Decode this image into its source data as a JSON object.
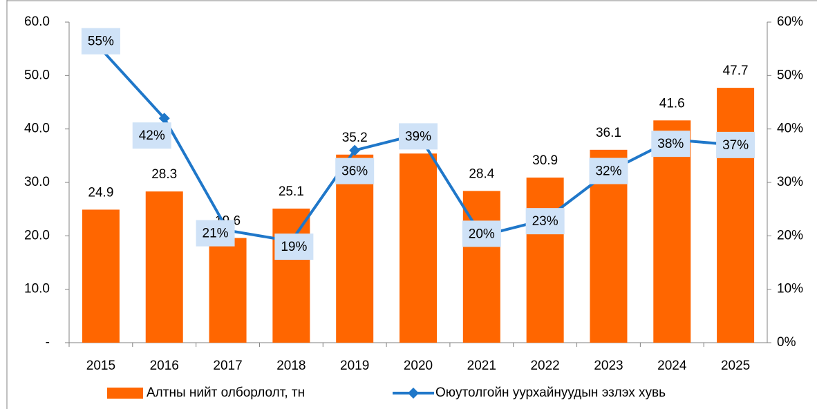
{
  "chart_data": {
    "type": "bar_line",
    "categories": [
      "2015",
      "2016",
      "2017",
      "2018",
      "2019",
      "2020",
      "2021",
      "2022",
      "2023",
      "2024",
      "2025"
    ],
    "series": [
      {
        "name": "Алтны нийт олборлолт, тн",
        "type": "bar",
        "color": "#ff6600",
        "values": [
          24.9,
          28.3,
          19.6,
          25.1,
          35.2,
          35.4,
          28.4,
          30.9,
          36.1,
          41.6,
          47.7
        ]
      },
      {
        "name": "Оюутолгойн уурхайнуудын эзлэх хувь",
        "type": "line",
        "axis": "y2",
        "color": "#1f77c9",
        "values": [
          55,
          42,
          21,
          19,
          36,
          39,
          20,
          23,
          32,
          38,
          37
        ],
        "value_labels": [
          "55%",
          "42%",
          "21%",
          "19%",
          "36%",
          "39%",
          "20%",
          "23%",
          "32%",
          "38%",
          "37%"
        ]
      }
    ],
    "ylim": [
      0,
      60
    ],
    "yticks": [
      {
        "value": 0,
        "label": "-"
      },
      {
        "value": 10,
        "label": "10.0"
      },
      {
        "value": 20,
        "label": "20.0"
      },
      {
        "value": 30,
        "label": "30.0"
      },
      {
        "value": 40,
        "label": "40.0"
      },
      {
        "value": 50,
        "label": "50.0"
      },
      {
        "value": 60,
        "label": "60.0"
      }
    ],
    "y2lim": [
      0,
      60
    ],
    "y2ticks": [
      {
        "value": 0,
        "label": "0%"
      },
      {
        "value": 10,
        "label": "10%"
      },
      {
        "value": 20,
        "label": "20%"
      },
      {
        "value": 30,
        "label": "30%"
      },
      {
        "value": 40,
        "label": "40%"
      },
      {
        "value": 50,
        "label": "50%"
      },
      {
        "value": 60,
        "label": "60%"
      }
    ],
    "legend": "bottom"
  }
}
